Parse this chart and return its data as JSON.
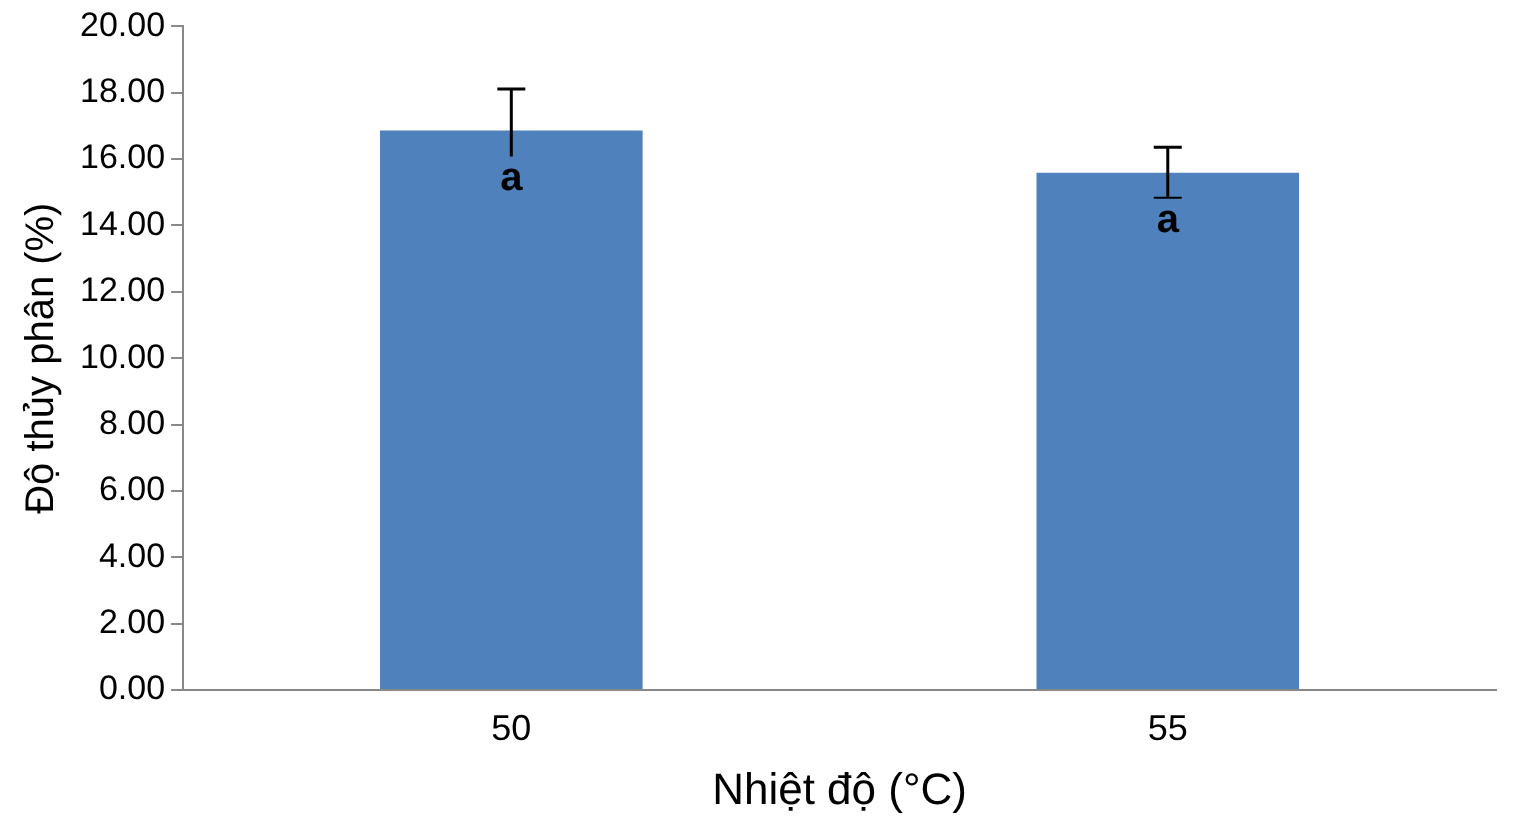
{
  "chart_data": {
    "type": "bar",
    "xlabel": "Nhiệt độ (°C)",
    "ylabel": "Độ thủy phân (%)",
    "categories": [
      "50",
      "55"
    ],
    "values": [
      16.86,
      15.59
    ],
    "errors": [
      1.25,
      0.77
    ],
    "color": "#4f81bd",
    "ylim": [
      0,
      20
    ],
    "yticks": [
      {
        "value": 0,
        "label": "0.00"
      },
      {
        "value": 2,
        "label": "2.00"
      },
      {
        "value": 4,
        "label": "4.00"
      },
      {
        "value": 6,
        "label": "6.00"
      },
      {
        "value": 8,
        "label": "8.00"
      },
      {
        "value": 10,
        "label": "10.00"
      },
      {
        "value": 12,
        "label": "12.00"
      },
      {
        "value": 14,
        "label": "14.00"
      },
      {
        "value": 16,
        "label": "16.00"
      },
      {
        "value": 18,
        "label": "18.00"
      },
      {
        "value": 20,
        "label": "20.00"
      }
    ],
    "annotations": [
      {
        "text": "a",
        "x": "50",
        "y": 16.86
      },
      {
        "text": "a",
        "x": "55",
        "y": 15.59
      }
    ],
    "grid": false,
    "legend": false
  }
}
